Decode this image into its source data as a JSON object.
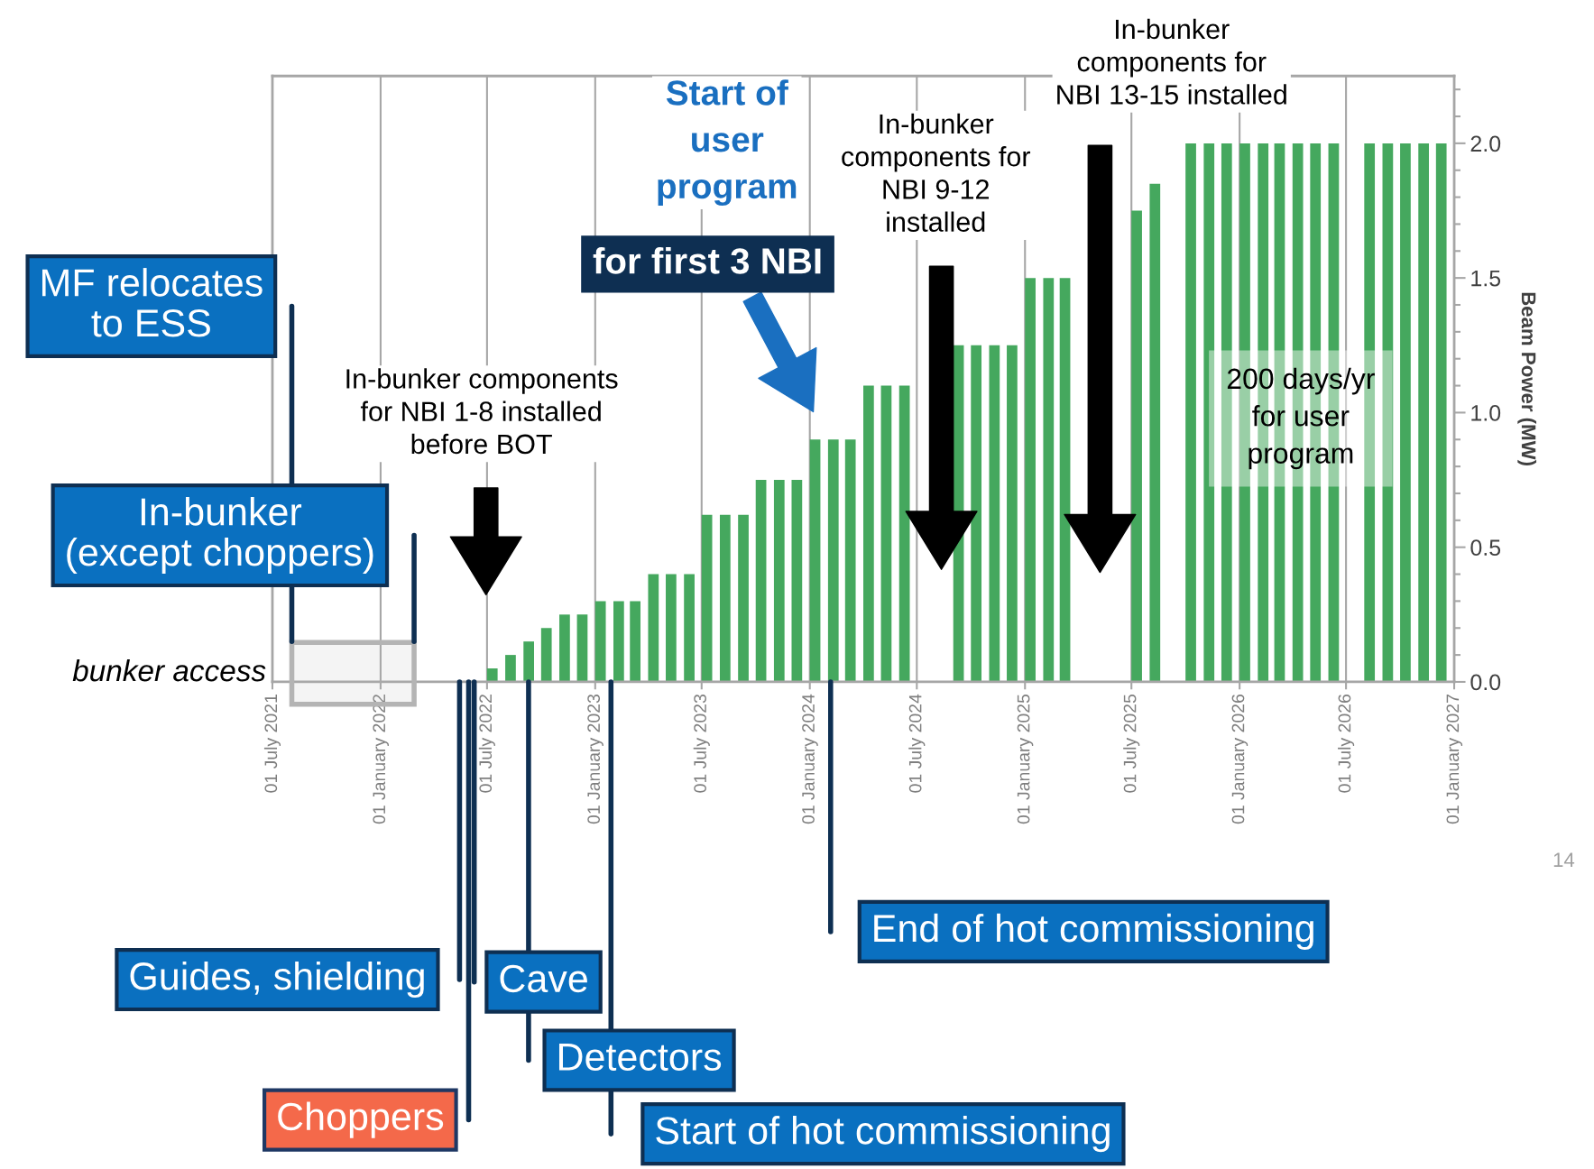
{
  "chart_data": {
    "type": "bar",
    "ylabel": "Beam Power (MW)",
    "xlim": [
      "2021-07-01",
      "2027-01-01"
    ],
    "xticks": [
      {
        "value": "2021-07-01",
        "label": "01 July 2021"
      },
      {
        "value": "2022-01-01",
        "label": "01 January 2022"
      },
      {
        "value": "2022-07-01",
        "label": "01 July 2022"
      },
      {
        "value": "2023-01-01",
        "label": "01 January 2023"
      },
      {
        "value": "2023-07-01",
        "label": "01 July 2023"
      },
      {
        "value": "2024-01-01",
        "label": "01 January 2024"
      },
      {
        "value": "2024-07-01",
        "label": "01 July 2024"
      },
      {
        "value": "2025-01-01",
        "label": "01 January 2025"
      },
      {
        "value": "2025-07-01",
        "label": "01 July 2025"
      },
      {
        "value": "2026-01-01",
        "label": "01 January 2026"
      },
      {
        "value": "2026-07-01",
        "label": "01 July 2026"
      },
      {
        "value": "2027-01-01",
        "label": "01 January 2027"
      }
    ],
    "ylim": [
      0,
      2.25
    ],
    "yticks": [
      {
        "value": 0,
        "label": "0.0"
      },
      {
        "value": 0.5,
        "label": "0.5"
      },
      {
        "value": 1.0,
        "label": "1.0"
      },
      {
        "value": 1.5,
        "label": "1.5"
      },
      {
        "value": 2.0,
        "label": "2.0"
      }
    ],
    "grid": "x",
    "series": [
      {
        "color": "#45a85e",
        "x": [
          "2022-07",
          "2022-08",
          "2022-09",
          "2022-10",
          "2022-11",
          "2022-12",
          "2023-01",
          "2023-02",
          "2023-03",
          "2023-04",
          "2023-05",
          "2023-06",
          "2023-07",
          "2023-08",
          "2023-09",
          "2023-10",
          "2023-11",
          "2023-12",
          "2024-01",
          "2024-02",
          "2024-03",
          "2024-04",
          "2024-05",
          "2024-06",
          "2024-09",
          "2024-10",
          "2024-11",
          "2024-12",
          "2025-01",
          "2025-02",
          "2025-03",
          "2025-07",
          "2025-08",
          "2025-10",
          "2025-11",
          "2025-12",
          "2026-01",
          "2026-02",
          "2026-03",
          "2026-04",
          "2026-05",
          "2026-06",
          "2026-08",
          "2026-09",
          "2026-10",
          "2026-11",
          "2026-12"
        ],
        "values": [
          0.05,
          0.1,
          0.15,
          0.2,
          0.25,
          0.25,
          0.3,
          0.3,
          0.3,
          0.4,
          0.4,
          0.4,
          0.62,
          0.62,
          0.62,
          0.75,
          0.75,
          0.75,
          0.9,
          0.9,
          0.9,
          1.1,
          1.1,
          1.1,
          1.25,
          1.25,
          1.25,
          1.25,
          1.5,
          1.5,
          1.5,
          1.75,
          1.85,
          2.0,
          2.0,
          2.0,
          2.0,
          2.0,
          2.0,
          2.0,
          2.0,
          2.0,
          2.0,
          2.0,
          2.0,
          2.0,
          2.0
        ]
      }
    ],
    "bands": [
      {
        "axis": "x",
        "from": "2021-08-03",
        "to": "2022-02-27",
        "color": "#b4b4b4"
      }
    ],
    "annotations": [
      {
        "text": "MF relocates\nto ESS",
        "x": "2021-08-03",
        "y": 0.15
      },
      {
        "text": "In-bunker\n(except choppers)",
        "x": "2022-02-27",
        "y": 0.15
      },
      "Guides, shielding",
      "Choppers",
      "Cave",
      "Detectors",
      "Start of hot commissioning",
      "End of hot commissioning",
      "Start of\nuser\nprogram",
      "for first 3 NBI",
      "In-bunker components\nfor NBI 1-8 installed\nbefore BOT",
      "In-bunker\ncomponents for\nNBI 9-12\ninstalled",
      "In-bunker\ncomponents for\nNBI 13-15 installed",
      "200 days/yr\nfor user\nprogram",
      "14",
      "bunker access"
    ]
  }
}
